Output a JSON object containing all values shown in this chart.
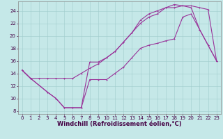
{
  "xlabel": "Windchill (Refroidissement éolien,°C)",
  "bg_color": "#c5e8e8",
  "line_color": "#993399",
  "grid_color": "#a0cccc",
  "xlim": [
    -0.5,
    23.5
  ],
  "ylim": [
    7.5,
    25.5
  ],
  "xticks": [
    0,
    1,
    2,
    3,
    4,
    5,
    6,
    7,
    8,
    9,
    10,
    11,
    12,
    13,
    14,
    15,
    16,
    17,
    18,
    19,
    20,
    21,
    22,
    23
  ],
  "yticks": [
    8,
    10,
    12,
    14,
    16,
    18,
    20,
    22,
    24
  ],
  "line1_x": [
    0,
    1,
    2,
    3,
    4,
    5,
    6,
    7,
    8,
    9,
    10,
    11,
    12,
    13,
    14,
    15,
    16,
    17,
    18,
    19,
    20,
    21,
    22,
    23
  ],
  "line1_y": [
    14.5,
    13.2,
    13.2,
    13.2,
    13.2,
    13.2,
    13.2,
    14.0,
    14.8,
    15.5,
    16.5,
    17.5,
    19.0,
    20.5,
    22.0,
    23.0,
    23.5,
    24.5,
    24.5,
    24.8,
    24.8,
    24.5,
    24.2,
    16.0
  ],
  "line2_x": [
    0,
    1,
    3,
    4,
    5,
    6,
    7,
    8,
    9,
    10,
    11,
    12,
    13,
    14,
    15,
    16,
    17,
    18,
    19,
    20,
    21,
    22,
    23
  ],
  "line2_y": [
    14.5,
    13.2,
    11.0,
    10.0,
    8.5,
    8.5,
    8.5,
    15.8,
    15.8,
    16.5,
    17.5,
    19.0,
    20.5,
    22.5,
    23.5,
    24.0,
    24.5,
    25.0,
    24.8,
    24.5,
    21.0,
    18.5,
    16.0
  ],
  "line3_x": [
    0,
    1,
    3,
    4,
    5,
    6,
    7,
    8,
    9,
    10,
    11,
    12,
    13,
    14,
    15,
    16,
    17,
    18,
    19,
    20,
    21,
    22,
    23
  ],
  "line3_y": [
    14.5,
    13.2,
    11.0,
    10.0,
    8.5,
    8.5,
    8.5,
    13.0,
    13.0,
    13.0,
    14.0,
    15.0,
    16.5,
    18.0,
    18.5,
    18.8,
    19.2,
    19.5,
    23.0,
    23.5,
    21.0,
    18.5,
    16.0
  ],
  "tick_fontsize": 5,
  "label_fontsize": 6,
  "marker_size": 2,
  "line_width": 0.8
}
